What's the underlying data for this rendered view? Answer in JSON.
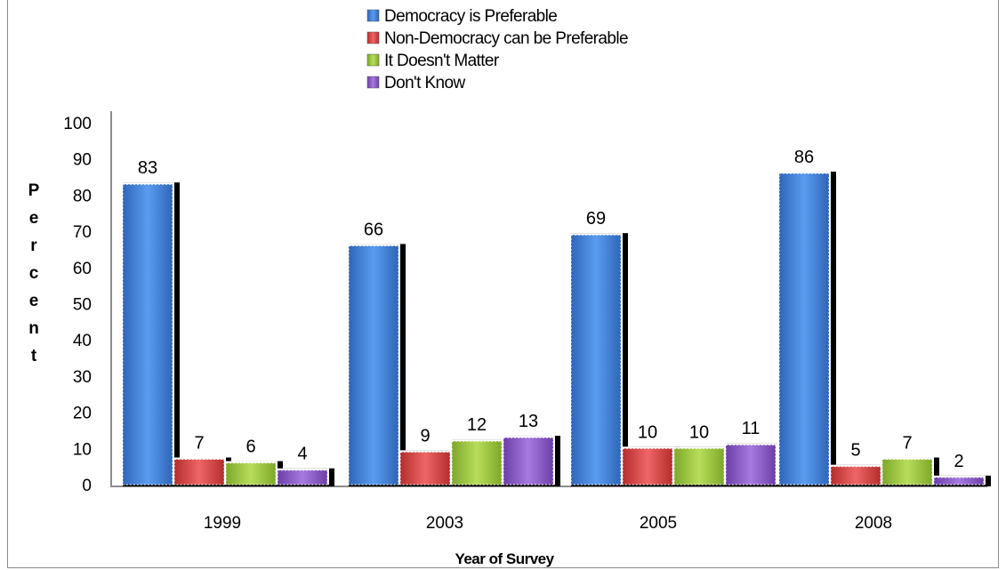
{
  "chart_data": {
    "type": "bar",
    "categories": [
      "1999",
      "2003",
      "2005",
      "2008"
    ],
    "series": [
      {
        "name": "Democracy is Preferable",
        "values": [
          83,
          66,
          69,
          86
        ],
        "color": "#3f7fd6"
      },
      {
        "name": "Non-Democracy can be Preferable",
        "values": [
          7,
          9,
          10,
          5
        ],
        "color": "#d64545"
      },
      {
        "name": "It Doesn't Matter",
        "values": [
          6,
          12,
          10,
          7
        ],
        "color": "#9cc43f"
      },
      {
        "name": "Don't Know",
        "values": [
          4,
          13,
          11,
          2
        ],
        "color": "#8a5cc4"
      }
    ],
    "ylim": [
      0,
      100
    ],
    "yticks": [
      0,
      10,
      20,
      30,
      40,
      50,
      60,
      70,
      80,
      90,
      100
    ],
    "ylabel": "Percent",
    "xlabel": "Year of Survey",
    "legend_position": "top-center",
    "grid": false
  }
}
